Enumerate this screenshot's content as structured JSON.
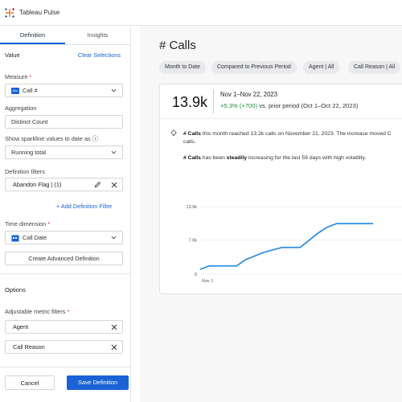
{
  "app": {
    "title": "Tableau Pulse"
  },
  "tabs": [
    {
      "label": "Definition",
      "active": true
    },
    {
      "label": "Insights",
      "active": false
    }
  ],
  "value_section": {
    "title": "Value",
    "clear_label": "Clear Selections"
  },
  "measure": {
    "label": "Measure",
    "required": "*",
    "icon_text": "Abc",
    "value": "Call #"
  },
  "aggregation": {
    "label": "Aggregation",
    "value": "Distinct Count"
  },
  "sparkline": {
    "label": "Show sparkline values to date as",
    "info_icon": "ⓘ",
    "value": "Running total"
  },
  "definition_filters": {
    "label": "Definition filters",
    "filter_value": "Abandon Flag | (1)",
    "add_label": "+  Add Definition Filter"
  },
  "time_dimension": {
    "label": "Time dimension",
    "required": "*",
    "value": "Call Date"
  },
  "advanced_label": "Create Advanced Definition",
  "options": {
    "title": "Options",
    "adjustable_label": "Adjustable metric filters",
    "required": "*",
    "filters": [
      "Agent",
      "Call Reason"
    ]
  },
  "footer": {
    "cancel_label": "Cancel",
    "save_label": "Save Definition"
  },
  "main": {
    "title": "# Calls",
    "chips": [
      {
        "text": "Month to Date"
      },
      {
        "text": "Compared to Previous Period"
      },
      {
        "text": "Agent | All"
      },
      {
        "text": "Call Reason | All"
      }
    ]
  },
  "card": {
    "value": "13.9k",
    "period": "Nov 1–Nov 22, 2023",
    "delta_pos": "+5.3% (+700)",
    "delta_rest": " vs. prior period (Oct 1–Oct 22, 2023)",
    "insight1_bold": "# Calls",
    "insight1_rest": " this month reached 13.2k calls on November 21, 2023. The increase moved C",
    "insight1_line2": "calls.",
    "insight2_bold1": "# Calls",
    "insight2_mid": " has been ",
    "insight2_bold2": "steadily",
    "insight2_rest": " increasing for the last 59 days with high volatility."
  },
  "colors": {
    "accent": "#1a62d6",
    "line": "#2f8fe0",
    "positive": "#1e8b3e"
  },
  "chart_data": {
    "type": "line",
    "ylim": [
      0,
      13900
    ],
    "yticks": [
      "13.9k",
      "7.0k",
      "0"
    ],
    "ytick_values": [
      13900,
      7000,
      0
    ],
    "xtick_labels": [
      "Nov 1"
    ],
    "x": [
      1,
      2,
      5,
      6,
      8,
      10,
      12,
      13,
      14,
      15,
      16,
      18,
      20
    ],
    "values": [
      1000,
      1700,
      1700,
      3000,
      4500,
      5500,
      5500,
      7000,
      8500,
      9700,
      10400,
      10400,
      10400
    ]
  }
}
